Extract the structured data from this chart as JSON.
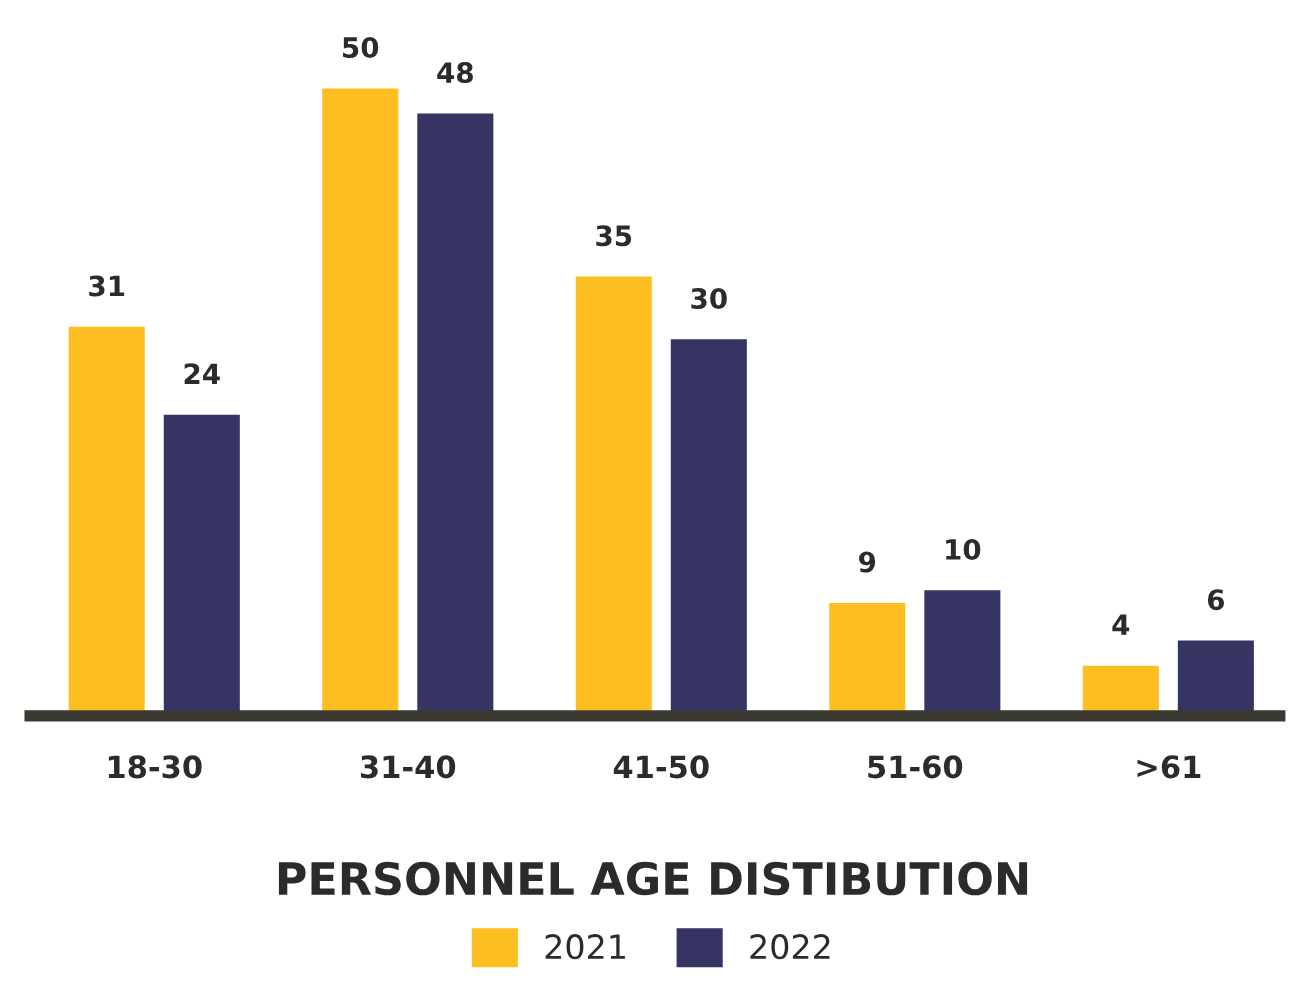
{
  "chart_data": {
    "type": "bar",
    "title": "PERSONNEL AGE DISTIBUTION",
    "categories": [
      "18-30",
      "31-40",
      "41-50",
      "51-60",
      ">61"
    ],
    "series": [
      {
        "name": "2021",
        "color": "#fdbe22",
        "values": [
          31,
          50,
          35,
          9,
          4
        ]
      },
      {
        "name": "2022",
        "color": "#353462",
        "values": [
          24,
          48,
          30,
          10,
          6
        ]
      }
    ],
    "data_labels": true,
    "grid": false,
    "legend": "bottom"
  }
}
